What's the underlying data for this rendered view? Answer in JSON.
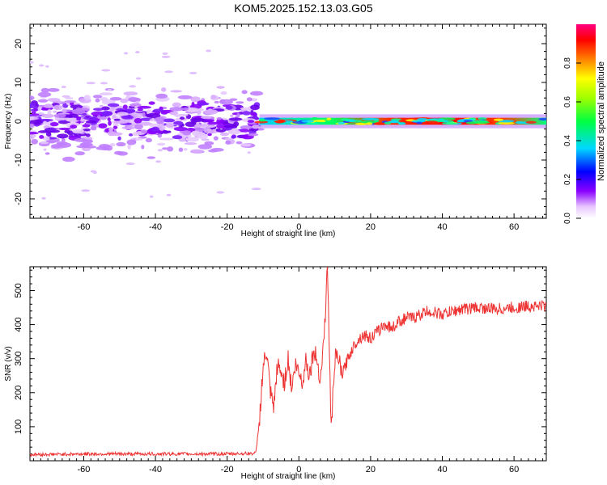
{
  "title": "KOM5.2025.152.13.03.G05",
  "chart_data": [
    {
      "type": "heatmap",
      "name": "spectrogram",
      "xlabel": "Height of straight line (km)",
      "ylabel": "Frequency (Hz)",
      "xlim": [
        -75,
        69
      ],
      "ylim": [
        -25,
        25
      ],
      "xticks": [
        -60,
        -40,
        -20,
        0,
        20,
        40,
        60
      ],
      "yticks": [
        -20,
        -10,
        0,
        10,
        20
      ],
      "colorbar": {
        "label": "Normalized spectral amplitude",
        "range": [
          0,
          1
        ],
        "ticks": [
          "0.0",
          "0.2",
          "0.4",
          "0.6",
          "0.8"
        ]
      },
      "regions": [
        {
          "x": [
            -75,
            -11
          ],
          "freq_center": 0,
          "freq_spread": 8,
          "amplitude": 0.08
        },
        {
          "x": [
            -11,
            69
          ],
          "freq_center": 0,
          "freq_spread": 0.8,
          "amplitude": [
            0.3,
            1.0
          ]
        }
      ],
      "grid": false
    },
    {
      "type": "line",
      "xlabel": "Height of straight line (km)",
      "ylabel": "SNR (v/v)",
      "xlim": [
        -75,
        69
      ],
      "ylim": [
        0,
        570
      ],
      "xticks": [
        -60,
        -40,
        -20,
        0,
        20,
        40,
        60
      ],
      "yticks": [
        100,
        200,
        300,
        400,
        500
      ],
      "color": "#ee3333",
      "x": [
        -75,
        -60,
        -40,
        -20,
        -12,
        -11,
        -10,
        -9,
        -8,
        -7,
        -6,
        -5,
        -4,
        -3,
        -2,
        -1,
        0,
        1,
        2,
        3,
        4,
        5,
        6,
        7,
        8,
        9,
        10,
        11,
        12,
        14,
        16,
        18,
        20,
        22,
        24,
        26,
        28,
        30,
        32,
        34,
        36,
        38,
        40,
        45,
        50,
        55,
        60,
        65,
        69
      ],
      "y": [
        18,
        20,
        20,
        20,
        22,
        120,
        270,
        320,
        200,
        150,
        280,
        260,
        230,
        300,
        210,
        280,
        260,
        230,
        300,
        250,
        320,
        300,
        240,
        360,
        570,
        90,
        300,
        300,
        250,
        310,
        350,
        370,
        360,
        380,
        400,
        390,
        410,
        420,
        420,
        430,
        440,
        435,
        430,
        445,
        450,
        445,
        450,
        455,
        455
      ],
      "grid": false
    }
  ]
}
